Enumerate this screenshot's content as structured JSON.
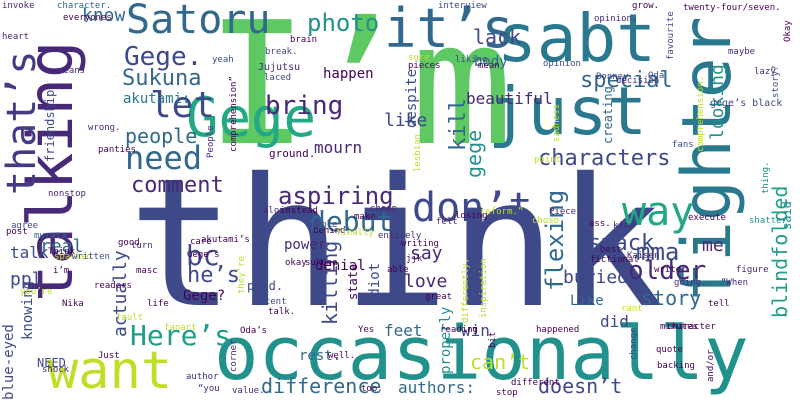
{
  "words": [
    {
      "t": "think",
      "c": "#3e4989"
    },
    {
      "t": "I’m",
      "c": "#5ec962"
    },
    {
      "t": "talking",
      "c": "#482878"
    },
    {
      "t": "occasionally",
      "c": "#21918c"
    },
    {
      "t": "fighter",
      "c": "#2a788e"
    },
    {
      "t": "sabt",
      "c": "#2a788e"
    },
    {
      "t": "just",
      "c": "#2a788e"
    },
    {
      "t": "Gege",
      "c": "#22a884"
    },
    {
      "t": "it’s",
      "c": "#31688e"
    },
    {
      "t": "want",
      "c": "#bddf26"
    },
    {
      "t": "Satoru",
      "c": "#31688e"
    },
    {
      "t": "that’s",
      "c": "#443983"
    },
    {
      "t": "need",
      "c": "#31688e"
    },
    {
      "t": "way",
      "c": "#22a884"
    },
    {
      "t": "don’t",
      "c": "#3e4989"
    },
    {
      "t": "let",
      "c": "#3e4989"
    },
    {
      "t": "photo",
      "c": "#21918c"
    },
    {
      "t": "Gege.",
      "c": "#3e4989"
    },
    {
      "t": "bring",
      "c": "#482878"
    },
    {
      "t": "lack",
      "c": "#3e4989"
    },
    {
      "t": "mma",
      "c": "#3e4989"
    },
    {
      "t": "older",
      "c": "#482878"
    },
    {
      "t": "aspiring",
      "c": "#482878"
    },
    {
      "t": "special",
      "c": "#31688e"
    },
    {
      "t": "characters",
      "c": "#3e4989"
    },
    {
      "t": "kill",
      "c": "#31688e"
    },
    {
      "t": "Here’s",
      "c": "#1f9e89"
    },
    {
      "t": "blindfolded",
      "c": "#1f9e89"
    },
    {
      "t": "smack",
      "c": "#3e4989"
    },
    {
      "t": "difference",
      "c": "#31688e"
    },
    {
      "t": "comment",
      "c": "#482878"
    },
    {
      "t": "debut",
      "c": "#31688e"
    },
    {
      "t": "people",
      "c": "#31688e"
    },
    {
      "t": "Sukuna",
      "c": "#31688e"
    },
    {
      "t": "flexing",
      "c": "#31688e"
    },
    {
      "t": "story",
      "c": "#31688e"
    },
    {
      "t": "he’s",
      "c": "#3e4989"
    },
    {
      "t": "doesn’t",
      "c": "#3e4989"
    },
    {
      "t": "bc",
      "c": "#3e4989"
    },
    {
      "t": "killing",
      "c": "#3e4989"
    },
    {
      "t": "can’t",
      "c": "#bddf26"
    },
    {
      "t": "buried",
      "c": "#3e4989"
    },
    {
      "t": "gege",
      "c": "#21918c"
    },
    {
      "t": "looking",
      "c": "#21918c"
    },
    {
      "t": "like",
      "c": "#3e4989"
    },
    {
      "t": "love",
      "c": "#482878"
    },
    {
      "t": "me",
      "c": "#482878"
    },
    {
      "t": "say",
      "c": "#482878"
    },
    {
      "t": "happen",
      "c": "#440154"
    },
    {
      "t": "real",
      "c": "#31688e"
    },
    {
      "t": "ppl",
      "c": "#3e4989"
    },
    {
      "t": "knowing",
      "c": "#3e4989"
    },
    {
      "t": "actually",
      "c": "#3e4989"
    },
    {
      "t": "know",
      "c": "#31688e"
    },
    {
      "t": "did",
      "c": "#3e4989"
    },
    {
      "t": "mourn",
      "c": "#482878"
    },
    {
      "t": "beautiful",
      "c": "#482878"
    },
    {
      "t": "authors:",
      "c": "#31688e"
    },
    {
      "t": "feet",
      "c": "#31688e"
    },
    {
      "t": "win",
      "c": "#3e4989"
    },
    {
      "t": "talk",
      "c": "#3e4989"
    },
    {
      "t": "akutami:",
      "c": "#2a788e"
    },
    {
      "t": "ptsd.",
      "c": "#3e4989"
    },
    {
      "t": "Gege?",
      "c": "#440154"
    },
    {
      "t": "blue-eyed",
      "c": "#3e4989"
    },
    {
      "t": "properly",
      "c": "#21918c"
    },
    {
      "t": "denial",
      "c": "#440154"
    },
    {
      "t": "state",
      "c": "#440154"
    },
    {
      "t": "idiot",
      "c": "#3e4989"
    },
    {
      "t": "power",
      "c": "#482878"
    },
    {
      "t": "body",
      "c": "#31688e"
    },
    {
      "t": "despite",
      "c": "#3e4989"
    },
    {
      "t": "Like",
      "c": "#31688e"
    },
    {
      "t": "friendship",
      "c": "#3e4989"
    },
    {
      "t": "rest.",
      "c": "#31688e"
    },
    {
      "t": "NEED",
      "c": "#3e4989"
    },
    {
      "t": "Jujutsu",
      "c": "#482878"
    },
    {
      "t": "creating",
      "c": "#31688e"
    },
    {
      "t": "said",
      "c": "#21918c"
    },
    {
      "t": "gege’s black",
      "c": "#3e4989"
    },
    {
      "t": "ground.",
      "c": "#440154"
    },
    {
      "t": "interview",
      "c": "#3e4989"
    },
    {
      "t": "invoke",
      "c": "#482878"
    },
    {
      "t": "character.",
      "c": "#31688e"
    },
    {
      "t": "heart",
      "c": "#482878"
    },
    {
      "t": "everyones",
      "c": "#440154"
    },
    {
      "t": "favourite",
      "c": "#3e4989"
    },
    {
      "t": "opinion.",
      "c": "#482878"
    },
    {
      "t": "grow.",
      "c": "#440154"
    },
    {
      "t": "twenty-four/seven.",
      "c": "#440154"
    },
    {
      "t": "Okay",
      "c": "#440154"
    },
    {
      "t": "lazy",
      "c": "#482878"
    },
    {
      "t": "story?",
      "c": "#3e4989"
    },
    {
      "t": "maybe",
      "c": "#482878"
    },
    {
      "t": "brain",
      "c": "#440154"
    },
    {
      "t": "break.",
      "c": "#3e4989"
    },
    {
      "t": "yeah",
      "c": "#3e4989"
    },
    {
      "t": "laced",
      "c": "#3e4989"
    },
    {
      "t": "pieces",
      "c": "#440154"
    },
    {
      "t": "liking",
      "c": "#3e4989"
    },
    {
      "t": "mean",
      "c": "#440154"
    },
    {
      "t": "sure",
      "c": "#bddf26"
    },
    {
      "t": "opinion",
      "c": "#3e4989"
    },
    {
      "t": "Bonney",
      "c": "#3e4989"
    },
    {
      "t": "decision",
      "c": "#482878"
    },
    {
      "t": "Oda",
      "c": "#3e4989"
    },
    {
      "t": "comprehension.",
      "c": "#bddf26"
    },
    {
      "t": "fans",
      "c": "#3e4989"
    },
    {
      "t": "panties",
      "c": "#440154"
    },
    {
      "t": "sadness",
      "c": "#bddf26"
    },
    {
      "t": "comprehension”",
      "c": "#440154"
    },
    {
      "t": "wrong.",
      "c": "#482878"
    },
    {
      "t": "means",
      "c": "#482878"
    },
    {
      "t": "People",
      "c": "#482878"
    },
    {
      "t": "lesbian",
      "c": "#bddf26"
    },
    {
      "t": "nonstop",
      "c": "#482878"
    },
    {
      "t": "alone.",
      "c": "#482878"
    },
    {
      "t": "instead",
      "c": "#440154"
    },
    {
      "t": "cheap",
      "c": "#482878"
    },
    {
      "t": "losing",
      "c": "#440154"
    },
    {
      "t": "reform.”",
      "c": "#bddf26"
    },
    {
      "t": "Piece.",
      "c": "#482878"
    },
    {
      "t": "point",
      "c": "#bddf26"
    },
    {
      "t": "behind.",
      "c": "#440154"
    },
    {
      "t": "shatter",
      "c": "#21918c"
    },
    {
      "t": "thing.",
      "c": "#21918c"
    },
    {
      "t": "execute",
      "c": "#440154"
    },
    {
      "t": "agree",
      "c": "#3e4989"
    },
    {
      "t": "murata",
      "c": "#31688e"
    },
    {
      "t": "Think",
      "c": "#440154"
    },
    {
      "t": "post",
      "c": "#440154"
    },
    {
      "t": "good",
      "c": "#440154"
    },
    {
      "t": "care",
      "c": "#440154"
    },
    {
      "t": "unable",
      "c": "#3e4989"
    },
    {
      "t": "make",
      "c": "#440154"
    },
    {
      "t": "finally",
      "c": "#bddf26"
    },
    {
      "t": "entirely",
      "c": "#482878"
    },
    {
      "t": "felt",
      "c": "#482878"
    },
    {
      "t": "choso",
      "c": "#bddf26"
    },
    {
      "t": "ass.",
      "c": "#440154"
    },
    {
      "t": "kind",
      "c": "#482878"
    },
    {
      "t": "fictional",
      "c": "#440154"
    },
    {
      "t": "writer",
      "c": "#440154"
    },
    {
      "t": "figure",
      "c": "#482878"
    },
    {
      "t": "sparked",
      "c": "#bddf26"
    },
    {
      "t": "i’m",
      "c": "#440154"
    },
    {
      "t": "turn",
      "c": "#482878"
    },
    {
      "t": "you’re",
      "c": "#bddf26"
    },
    {
      "t": "written",
      "c": "#3e4989"
    },
    {
      "t": "Gege’s",
      "c": "#440154"
    },
    {
      "t": "akutami’s",
      "c": "#440154"
    },
    {
      "t": "they’re",
      "c": "#bddf26"
    },
    {
      "t": "writing",
      "c": "#440154"
    },
    {
      "t": "jjk",
      "c": "#440154"
    },
    {
      "t": "best",
      "c": "#440154"
    },
    {
      "t": "Kaisen",
      "c": "#482878"
    },
    {
      "t": "masc",
      "c": "#440154"
    },
    {
      "t": "okay",
      "c": "#440154"
    },
    {
      "t": "sukuna",
      "c": "#440154"
    },
    {
      "t": "able",
      "c": "#440154"
    },
    {
      "t": "“When",
      "c": "#482878"
    },
    {
      "t": "going.",
      "c": "#482878"
    },
    {
      "t": "Nika",
      "c": "#440154"
    },
    {
      "t": "readers",
      "c": "#440154"
    },
    {
      "t": "life",
      "c": "#440154"
    },
    {
      "t": "recent",
      "c": "#3e4989"
    },
    {
      "t": "talk.",
      "c": "#440154"
    },
    {
      "t": "great",
      "c": "#440154"
    },
    {
      "t": "rant",
      "c": "#bddf26"
    },
    {
      "t": "tell",
      "c": "#440154"
    },
    {
      "t": "fault",
      "c": "#bddf26"
    },
    {
      "t": "fanart",
      "c": "#bddf26"
    },
    {
      "t": "inspiration",
      "c": "#bddf26"
    },
    {
      "t": "differently,",
      "c": "#bddf26"
    },
    {
      "t": "bit",
      "c": "#440154"
    },
    {
      "t": "minutes",
      "c": "#440154"
    },
    {
      "t": "character",
      "c": "#440154"
    },
    {
      "t": "Just",
      "c": "#440154"
    },
    {
      "t": "Oda’s",
      "c": "#440154"
    },
    {
      "t": "Yes",
      "c": "#440154"
    },
    {
      "t": "reading",
      "c": "#440154"
    },
    {
      "t": "happened",
      "c": "#440154"
    },
    {
      "t": "change",
      "c": "#3e4989"
    },
    {
      "t": "quote",
      "c": "#440154"
    },
    {
      "t": "well.",
      "c": "#440154"
    },
    {
      "t": "backing",
      "c": "#440154"
    },
    {
      "t": "and/or",
      "c": "#440154"
    },
    {
      "t": "shock",
      "c": "#482878"
    },
    {
      "t": "author",
      "c": "#482878"
    },
    {
      "t": "corner",
      "c": "#482878"
    },
    {
      "t": "different",
      "c": "#440154"
    },
    {
      "t": "stop",
      "c": "#440154"
    },
    {
      "t": "“you",
      "c": "#482878"
    },
    {
      "t": "value.",
      "c": "#482878"
    },
    {
      "t": "too.",
      "c": "#440154"
    }
  ]
}
